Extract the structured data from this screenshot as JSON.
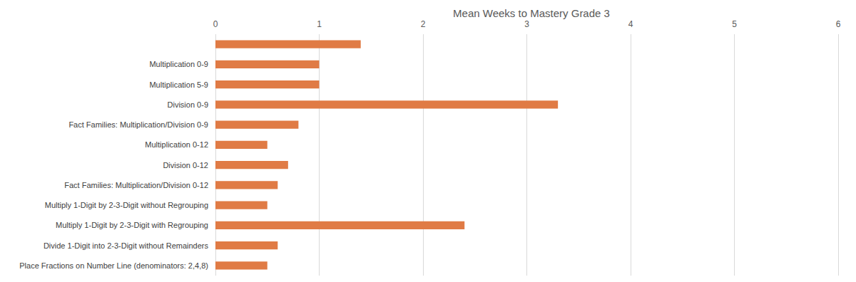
{
  "chart_data": {
    "type": "bar",
    "orientation": "horizontal",
    "title": "Mean Weeks to Mastery Grade 3",
    "categories": [
      null,
      "Multiplication 0-9",
      "Multiplication 5-9",
      "Division 0-9",
      "Fact Families: Multiplication/Division 0-9",
      "Multiplication 0-12",
      "Division 0-12",
      "Fact Families: Multiplication/Division 0-12",
      "Multiply 1-Digit by 2-3-Digit without Regrouping",
      "Multiply 1-Digit by 2-3-Digit with Regrouping",
      "Divide 1-Digit into 2-3-Digit without Remainders",
      "Place Fractions on Number Line (denominators: 2,4,8)"
    ],
    "values": [
      1.4,
      1.0,
      1.0,
      3.3,
      0.8,
      0.5,
      0.7,
      0.6,
      0.5,
      2.4,
      0.6,
      0.5
    ],
    "color": "#e07b45",
    "xlim": [
      0,
      6
    ],
    "xticks": [
      0,
      1,
      2,
      3,
      4,
      5,
      6
    ],
    "grid": true
  }
}
